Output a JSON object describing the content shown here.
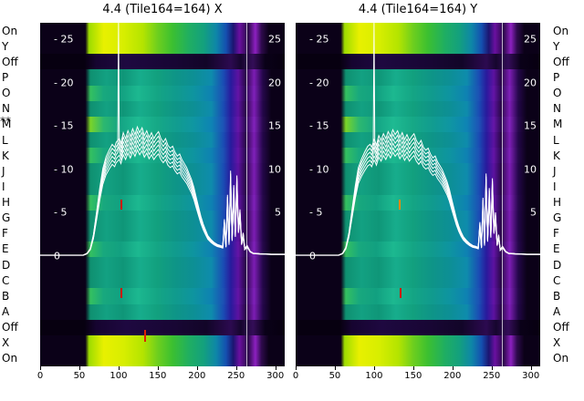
{
  "titles": {
    "left": "4.4 (Tile164=164) X",
    "right": "4.4 (Tile164=164) Y"
  },
  "asterisk": "**",
  "row_labels_left": [
    "On",
    "Y",
    "Off",
    "P",
    "O",
    "N",
    "M",
    "L",
    "K",
    "J",
    "I",
    "H",
    "G",
    "F",
    "E",
    "D",
    "C",
    "B",
    "A",
    "Off",
    "X",
    "On"
  ],
  "row_labels_right": [
    "On",
    "Y",
    "Off",
    "P",
    "O",
    "N",
    "M",
    "L",
    "K",
    "J",
    "I",
    "H",
    "G",
    "F",
    "E",
    "D",
    "C",
    "B",
    "A",
    "Off",
    "X",
    "On"
  ],
  "colors": {
    "background": "#ffffff",
    "trace": "#ffffff",
    "text": "#000000",
    "heat_low": "#0b0118",
    "heat_mid": "#12a07e",
    "heat_high": "#e8f000",
    "heat_stripe": "#8c20c0"
  },
  "chart_data": [
    {
      "type": "heatmap",
      "title": "4.4 (Tile164=164) X",
      "x_ticks": [
        0,
        50,
        100,
        150,
        200,
        250,
        300
      ],
      "x_range": [
        0,
        312
      ],
      "y_ticks_left": [
        {
          "v": 25,
          "label": "- 25"
        },
        {
          "v": 20,
          "label": "- 20"
        },
        {
          "v": 15,
          "label": "- 15"
        },
        {
          "v": 10,
          "label": "- 10"
        },
        {
          "v": 5,
          "label": "- 5"
        },
        {
          "v": 0,
          "label": "0"
        }
      ],
      "y_ticks_right": [
        {
          "v": 25,
          "label": "25"
        },
        {
          "v": 20,
          "label": "20"
        },
        {
          "v": 15,
          "label": "15"
        },
        {
          "v": 10,
          "label": "10"
        },
        {
          "v": 5,
          "label": "5"
        }
      ],
      "rows": [
        {
          "label": "On",
          "band": "hot"
        },
        {
          "label": "Y",
          "band": "hot"
        },
        {
          "label": "Off",
          "band": "off"
        },
        {
          "label": "P",
          "band": "mid"
        },
        {
          "label": "O",
          "band": "mid2"
        },
        {
          "label": "N",
          "band": "mid"
        },
        {
          "label": "M",
          "band": "mid3"
        },
        {
          "label": "L",
          "band": "mid"
        },
        {
          "label": "K",
          "band": "mid2"
        },
        {
          "label": "J",
          "band": "mid"
        },
        {
          "label": "I",
          "band": "mid"
        },
        {
          "label": "H",
          "band": "mid2"
        },
        {
          "label": "G",
          "band": "mid"
        },
        {
          "label": "F",
          "band": "mid"
        },
        {
          "label": "E",
          "band": "mid2"
        },
        {
          "label": "D",
          "band": "mid"
        },
        {
          "label": "C",
          "band": "mid"
        },
        {
          "label": "B",
          "band": "mid2"
        },
        {
          "label": "A",
          "band": "mid"
        },
        {
          "label": "Off",
          "band": "off"
        },
        {
          "label": "X",
          "band": "hot"
        },
        {
          "label": "On",
          "band": "hot"
        }
      ],
      "line": {
        "x": [
          0,
          30,
          55,
          60,
          64,
          68,
          72,
          76,
          80,
          84,
          88,
          92,
          95,
          97,
          99,
          100,
          101,
          103,
          106,
          109,
          112,
          115,
          118,
          121,
          124,
          127,
          130,
          133,
          136,
          139,
          142,
          145,
          148,
          151,
          154,
          157,
          160,
          163,
          166,
          169,
          172,
          175,
          178,
          181,
          184,
          187,
          190,
          193,
          196,
          199,
          202,
          205,
          208,
          211,
          214,
          218,
          222,
          226,
          230,
          233,
          235,
          237,
          239,
          241,
          243,
          245,
          247,
          249,
          251,
          253,
          255,
          257,
          259,
          261,
          264,
          268,
          272,
          280,
          295,
          312
        ],
        "v": [
          0.1,
          0.1,
          0.1,
          0.3,
          0.8,
          2.2,
          4.5,
          7.0,
          9.0,
          10.2,
          10.9,
          11.5,
          11.2,
          11.7,
          11.9,
          26.9,
          12.1,
          11.6,
          12.7,
          12.1,
          12.9,
          12.3,
          13.1,
          12.5,
          13.3,
          12.7,
          13.2,
          12.4,
          12.9,
          12.2,
          12.7,
          12.1,
          12.5,
          12.8,
          12.1,
          11.7,
          12.1,
          11.4,
          11.1,
          11.3,
          10.7,
          10.3,
          10.5,
          9.9,
          9.5,
          9.1,
          8.5,
          7.9,
          7.1,
          6.1,
          5.1,
          4.1,
          3.3,
          2.7,
          2.1,
          1.7,
          1.4,
          1.2,
          1.1,
          1.0,
          3.8,
          1.1,
          6.3,
          1.4,
          8.8,
          1.9,
          7.3,
          2.4,
          8.3,
          2.9,
          4.8,
          1.4,
          2.4,
          0.8,
          1.1,
          0.5,
          0.3,
          0.25,
          0.2,
          0.2
        ]
      },
      "trace_mults": [
        1,
        1.04,
        0.96,
        1.08,
        0.92,
        1.12
      ],
      "markers": [
        {
          "x": 0.327,
          "y": 0.515,
          "h": 11,
          "color": "#cc1800"
        },
        {
          "x": 0.33,
          "y": 0.773,
          "h": 11,
          "color": "#cc1800"
        },
        {
          "x": 0.425,
          "y": 0.895,
          "h": 13,
          "color": "#e02000"
        }
      ]
    },
    {
      "type": "heatmap",
      "title": "4.4 (Tile164=164) Y",
      "x_ticks": [
        0,
        50,
        100,
        150,
        200,
        250,
        300
      ],
      "x_range": [
        0,
        312
      ],
      "y_ticks_left": [
        {
          "v": 25,
          "label": "- 25"
        },
        {
          "v": 20,
          "label": "- 20"
        },
        {
          "v": 15,
          "label": "- 15"
        },
        {
          "v": 10,
          "label": "- 10"
        },
        {
          "v": 5,
          "label": "- 5"
        },
        {
          "v": 0,
          "label": "0"
        }
      ],
      "y_ticks_right": [
        {
          "v": 25,
          "label": "25"
        },
        {
          "v": 20,
          "label": "20"
        },
        {
          "v": 15,
          "label": "15"
        },
        {
          "v": 10,
          "label": "10"
        },
        {
          "v": 5,
          "label": "5"
        }
      ],
      "rows": [
        {
          "label": "On",
          "band": "hot"
        },
        {
          "label": "Y",
          "band": "hot"
        },
        {
          "label": "Off",
          "band": "off"
        },
        {
          "label": "P",
          "band": "mid"
        },
        {
          "label": "O",
          "band": "mid2"
        },
        {
          "label": "N",
          "band": "mid"
        },
        {
          "label": "M",
          "band": "mid3"
        },
        {
          "label": "L",
          "band": "mid"
        },
        {
          "label": "K",
          "band": "mid2"
        },
        {
          "label": "J",
          "band": "mid"
        },
        {
          "label": "I",
          "band": "mid"
        },
        {
          "label": "H",
          "band": "mid2"
        },
        {
          "label": "G",
          "band": "mid"
        },
        {
          "label": "F",
          "band": "mid"
        },
        {
          "label": "E",
          "band": "mid2"
        },
        {
          "label": "D",
          "band": "mid"
        },
        {
          "label": "C",
          "band": "mid"
        },
        {
          "label": "B",
          "band": "mid2"
        },
        {
          "label": "A",
          "band": "mid"
        },
        {
          "label": "Off",
          "band": "off"
        },
        {
          "label": "X",
          "band": "hot"
        },
        {
          "label": "On",
          "band": "hot"
        }
      ],
      "line": {
        "x": [
          0,
          30,
          55,
          60,
          64,
          68,
          72,
          76,
          80,
          84,
          88,
          92,
          95,
          97,
          99,
          100,
          101,
          103,
          106,
          109,
          112,
          115,
          118,
          121,
          124,
          127,
          130,
          133,
          136,
          139,
          142,
          145,
          148,
          151,
          154,
          157,
          160,
          163,
          166,
          169,
          172,
          175,
          178,
          181,
          184,
          187,
          190,
          193,
          196,
          199,
          202,
          205,
          208,
          211,
          214,
          218,
          222,
          226,
          230,
          233,
          235,
          237,
          239,
          241,
          243,
          245,
          247,
          249,
          251,
          253,
          255,
          257,
          259,
          261,
          264,
          268,
          272,
          280,
          295,
          312
        ],
        "v": [
          0.1,
          0.1,
          0.1,
          0.3,
          0.9,
          2.4,
          4.8,
          7.2,
          9.1,
          10.0,
          10.7,
          11.3,
          11.5,
          11.2,
          11.7,
          26.9,
          11.9,
          11.4,
          12.4,
          11.9,
          12.6,
          12.1,
          12.8,
          12.3,
          13.0,
          12.5,
          12.9,
          12.2,
          12.7,
          12.0,
          12.5,
          11.9,
          12.3,
          12.6,
          11.9,
          11.5,
          11.9,
          11.2,
          10.9,
          11.1,
          10.5,
          10.1,
          10.3,
          9.7,
          9.3,
          8.9,
          8.3,
          7.7,
          6.9,
          5.9,
          4.9,
          3.9,
          3.1,
          2.5,
          2.0,
          1.6,
          1.3,
          1.1,
          1.0,
          0.9,
          3.5,
          1.0,
          6.0,
          1.3,
          8.5,
          1.8,
          7.0,
          2.3,
          8.0,
          2.8,
          4.5,
          1.3,
          2.2,
          0.7,
          1.0,
          0.5,
          0.3,
          0.25,
          0.2,
          0.2
        ]
      },
      "trace_mults": [
        1,
        1.04,
        0.96,
        1.08,
        0.92,
        1.12
      ],
      "markers": [
        {
          "x": 0.42,
          "y": 0.515,
          "h": 11,
          "color": "#ff8800"
        },
        {
          "x": 0.425,
          "y": 0.773,
          "h": 11,
          "color": "#cc1800"
        }
      ]
    }
  ]
}
